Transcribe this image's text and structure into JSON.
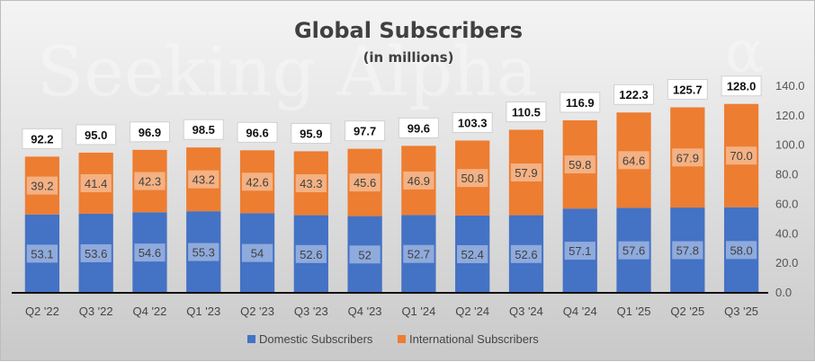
{
  "chart_data": {
    "type": "bar",
    "stacked": true,
    "title": "Global Subscribers",
    "subtitle": "(in millions)",
    "watermark": "Seeking Alpha",
    "watermark_symbol": "α",
    "categories": [
      "Q2 '22",
      "Q3 '22",
      "Q4 '22",
      "Q1 '23",
      "Q2 '23",
      "Q3 '23",
      "Q4 '23",
      "Q1 '24",
      "Q2 '24",
      "Q3 '24",
      "Q4 '24",
      "Q1 '25",
      "Q2 '25",
      "Q3 '25"
    ],
    "series": [
      {
        "name": "Domestic Subscribers",
        "color": "#4472c4",
        "label_bg": "#8faadc",
        "values": [
          53.1,
          53.6,
          54.6,
          55.3,
          54,
          52.6,
          52,
          52.7,
          52.4,
          52.6,
          57.1,
          57.6,
          57.8,
          58.0
        ],
        "labels": [
          "53.1",
          "53.6",
          "54.6",
          "55.3",
          "54",
          "52.6",
          "52",
          "52.7",
          "52.4",
          "52.6",
          "57.1",
          "57.6",
          "57.8",
          "58.0"
        ]
      },
      {
        "name": "International Subscribers",
        "color": "#ed7d31",
        "label_bg": "#f4b183",
        "values": [
          39.2,
          41.4,
          42.3,
          43.2,
          42.6,
          43.3,
          45.6,
          46.9,
          50.8,
          57.9,
          59.8,
          64.6,
          67.9,
          70.0
        ],
        "labels": [
          "39.2",
          "41.4",
          "42.3",
          "43.2",
          "42.6",
          "43.3",
          "45.6",
          "46.9",
          "50.8",
          "57.9",
          "59.8",
          "64.6",
          "67.9",
          "70.0"
        ]
      }
    ],
    "totals": [
      "92.2",
      "95.0",
      "96.9",
      "98.5",
      "96.6",
      "95.9",
      "97.7",
      "99.6",
      "103.3",
      "110.5",
      "116.9",
      "122.3",
      "125.7",
      "128.0"
    ],
    "ylim": [
      0,
      140
    ],
    "yticks": [
      "0.0",
      "20.0",
      "40.0",
      "60.0",
      "80.0",
      "100.0",
      "120.0",
      "140.0"
    ],
    "y_axis_side": "right",
    "legend_position": "bottom",
    "grid": false
  }
}
